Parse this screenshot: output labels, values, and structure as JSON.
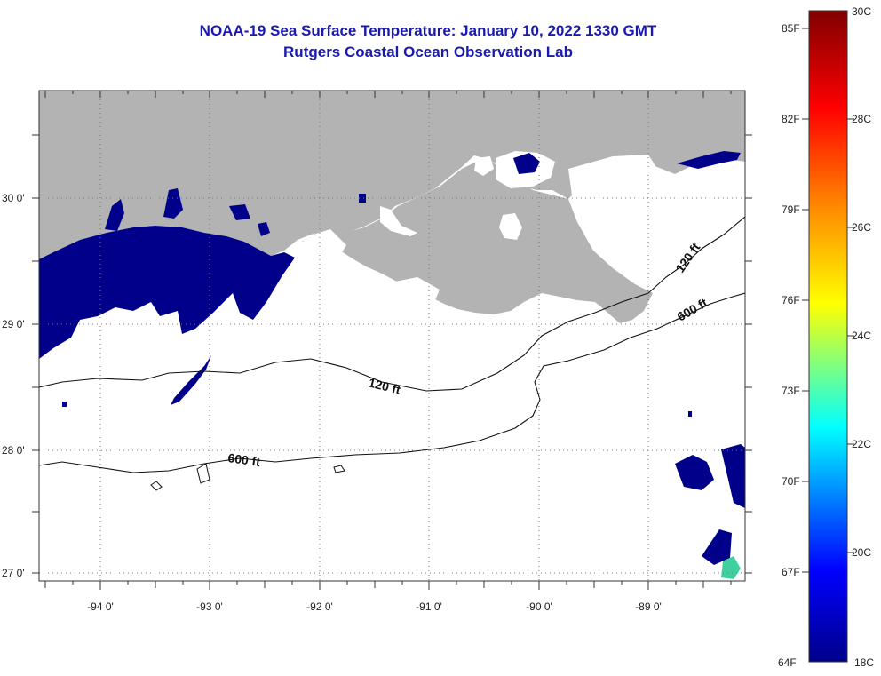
{
  "header": {
    "title": "NOAA-19 Sea Surface Temperature:  January 10, 2022 1330 GMT",
    "subtitle": "Rutgers Coastal Ocean Observation Lab"
  },
  "map": {
    "lon_labels": [
      "-94 0'",
      "-93 0'",
      "-92 0'",
      "-91 0'",
      "-90 0'",
      "-89 0'"
    ],
    "lat_labels": [
      "30 0'",
      "29 0'",
      "28 0'",
      "27 0'"
    ],
    "isobaths": [
      "120 ft",
      "600 ft"
    ],
    "colors": {
      "land": "#b3b3b3",
      "cold_water": "#00008b",
      "ocean_nodata": "#ffffff"
    }
  },
  "colorbar": {
    "fahrenheit": [
      "85F",
      "82F",
      "79F",
      "76F",
      "73F",
      "70F",
      "67F",
      "64F"
    ],
    "celsius": [
      "30C",
      "28C",
      "26C",
      "24C",
      "22C",
      "20C",
      "18C"
    ],
    "range_c": [
      18,
      30
    ],
    "colors": [
      "#00008b",
      "#0000ff",
      "#00ffff",
      "#ffff00",
      "#ff0000",
      "#800000"
    ]
  }
}
